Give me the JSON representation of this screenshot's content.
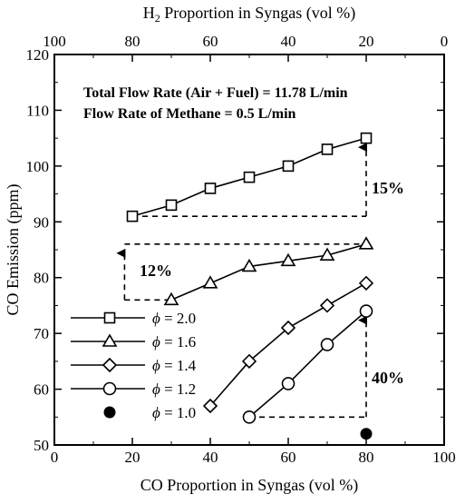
{
  "chart_data": {
    "type": "line",
    "xlabel": "CO Proportion in Syngas (vol %)",
    "x2label_prefix": "H",
    "x2label_sub": "2",
    "x2label_suffix": " Proportion in Syngas (vol %)",
    "ylabel": "CO Emission (ppm)",
    "xlim": [
      0,
      100
    ],
    "ylim": [
      50,
      120
    ],
    "x_ticks": [
      "0",
      "20",
      "40",
      "60",
      "80",
      "100"
    ],
    "x2_ticks": [
      "100",
      "80",
      "60",
      "40",
      "20",
      "0"
    ],
    "y_ticks": [
      "50",
      "60",
      "70",
      "80",
      "90",
      "100",
      "110",
      "120"
    ],
    "annotations": [
      "Total Flow Rate (Air + Fuel) = 11.78 L/min",
      "Flow Rate of Methane = 0.5 L/min"
    ],
    "percent_labels": [
      "15%",
      "12%",
      "40%"
    ],
    "series": [
      {
        "name": "ϕ = 2.0",
        "phi": "2.0",
        "marker": "square",
        "x": [
          20,
          30,
          40,
          50,
          60,
          70,
          80
        ],
        "y": [
          91,
          93,
          96,
          98,
          100,
          103,
          105
        ]
      },
      {
        "name": "ϕ = 1.6",
        "phi": "1.6",
        "marker": "triangle",
        "x": [
          30,
          40,
          50,
          60,
          70,
          80
        ],
        "y": [
          76,
          79,
          82,
          83,
          84,
          86
        ]
      },
      {
        "name": "ϕ = 1.4",
        "phi": "1.4",
        "marker": "diamond",
        "x": [
          40,
          50,
          60,
          70,
          80
        ],
        "y": [
          57,
          65,
          71,
          75,
          79
        ]
      },
      {
        "name": "ϕ = 1.2",
        "phi": "1.2",
        "marker": "circle",
        "x": [
          50,
          60,
          70,
          80
        ],
        "y": [
          55,
          61,
          68,
          74
        ]
      },
      {
        "name": "ϕ = 1.0",
        "phi": "1.0",
        "marker": "filled-circle",
        "x": [
          80
        ],
        "y": [
          52
        ]
      }
    ],
    "grid": false,
    "legend_position": "bottom-left"
  }
}
